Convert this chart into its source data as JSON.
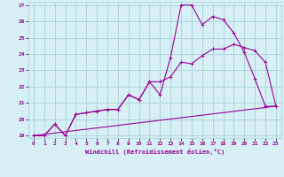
{
  "xlabel": "Windchill (Refroidissement éolien,°C)",
  "bg_color": "#d6f0f5",
  "grid_color": "#b0d4dd",
  "line_color": "#990099",
  "xlim": [
    -0.5,
    23.5
  ],
  "ylim": [
    18.85,
    27.2
  ],
  "xticks": [
    0,
    1,
    2,
    3,
    4,
    5,
    6,
    7,
    8,
    9,
    10,
    11,
    12,
    13,
    14,
    15,
    16,
    17,
    18,
    19,
    20,
    21,
    22,
    23
  ],
  "yticks": [
    19,
    20,
    21,
    22,
    23,
    24,
    25,
    26,
    27
  ],
  "line1_x": [
    0,
    1,
    2,
    3,
    4,
    5,
    6,
    7,
    8,
    9,
    10,
    11,
    12,
    13,
    14,
    15,
    16,
    17,
    18,
    19,
    20,
    21,
    22,
    23
  ],
  "line1_y": [
    19.0,
    19.0,
    19.7,
    19.0,
    20.3,
    20.4,
    20.5,
    20.6,
    20.6,
    21.5,
    21.2,
    22.3,
    21.5,
    23.8,
    27.0,
    27.0,
    25.8,
    26.3,
    26.1,
    25.3,
    24.1,
    22.5,
    20.8,
    20.8
  ],
  "line2_x": [
    0,
    1,
    2,
    3,
    4,
    5,
    6,
    7,
    8,
    9,
    10,
    11,
    12,
    13,
    14,
    15,
    16,
    17,
    18,
    19,
    20,
    21,
    22,
    23
  ],
  "line2_y": [
    19.0,
    19.0,
    19.7,
    19.0,
    20.3,
    20.4,
    20.5,
    20.6,
    20.6,
    21.5,
    21.2,
    22.3,
    22.3,
    22.6,
    23.5,
    23.4,
    23.9,
    24.3,
    24.3,
    24.6,
    24.4,
    24.2,
    23.5,
    20.8
  ],
  "line3_x": [
    0,
    23
  ],
  "line3_y": [
    19.0,
    20.8
  ]
}
